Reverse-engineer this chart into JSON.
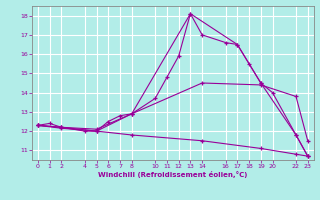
{
  "xlabel": "Windchill (Refroidissement éolien,°C)",
  "background_color": "#b2ede8",
  "grid_color": "#c8c8c8",
  "line_color": "#990099",
  "xlim": [
    -0.5,
    23.5
  ],
  "ylim": [
    10.5,
    18.5
  ],
  "x_ticks": [
    0,
    1,
    2,
    4,
    5,
    6,
    7,
    8,
    10,
    11,
    12,
    13,
    14,
    16,
    17,
    18,
    19,
    20,
    22,
    23
  ],
  "yticks": [
    11,
    12,
    13,
    14,
    15,
    16,
    17,
    18
  ],
  "series": [
    {
      "x": [
        0,
        1,
        2,
        4,
        5,
        6,
        7,
        8,
        10,
        11,
        12,
        13,
        14,
        16,
        17,
        18,
        19,
        20,
        22,
        23
      ],
      "y": [
        12.3,
        12.4,
        12.2,
        12.0,
        12.0,
        12.5,
        12.8,
        12.9,
        13.7,
        14.8,
        15.9,
        18.1,
        17.0,
        16.6,
        16.5,
        15.5,
        14.5,
        14.0,
        11.8,
        10.7
      ]
    },
    {
      "x": [
        0,
        2,
        5,
        8,
        13,
        17,
        19,
        22,
        23
      ],
      "y": [
        12.3,
        12.2,
        12.1,
        12.9,
        18.1,
        16.5,
        14.5,
        11.8,
        10.7
      ]
    },
    {
      "x": [
        0,
        2,
        5,
        8,
        14,
        19,
        22,
        23
      ],
      "y": [
        12.3,
        12.2,
        12.0,
        12.9,
        14.5,
        14.4,
        13.8,
        11.5
      ]
    },
    {
      "x": [
        0,
        2,
        5,
        8,
        14,
        19,
        22,
        23
      ],
      "y": [
        12.3,
        12.15,
        12.0,
        11.8,
        11.5,
        11.1,
        10.8,
        10.7
      ]
    }
  ]
}
